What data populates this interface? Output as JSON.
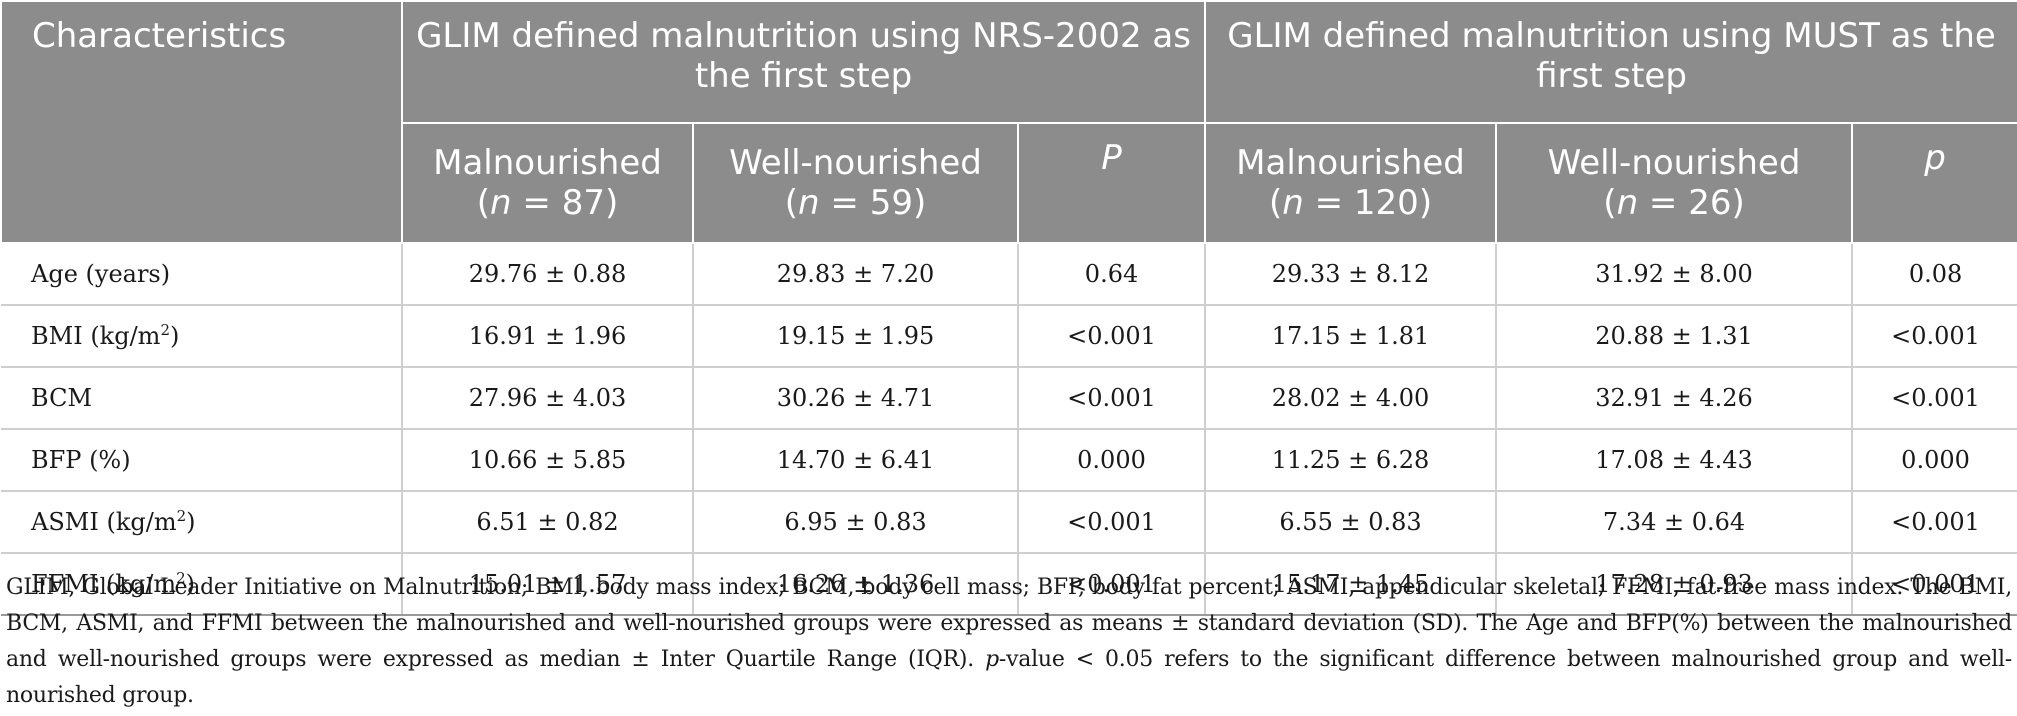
{
  "header": {
    "characteristics": "Characteristics",
    "group_nrs": "GLIM defined malnutrition using NRS-2002 as the first step",
    "group_must": "GLIM defined malnutrition using MUST as the first step",
    "nrs": {
      "malnourished": "Malnourished",
      "malnourished_n": "87",
      "well": "Well-nourished",
      "well_n": "59",
      "p": "P"
    },
    "must": {
      "malnourished": "Malnourished",
      "malnourished_n": "120",
      "well": "Well-nourished",
      "well_n": "26",
      "p": "p"
    },
    "n_label": "n",
    "n_eq": " = "
  },
  "rows": [
    {
      "label": "Age (years)",
      "unit_sup": "",
      "unit_close": "",
      "nrs_mal": "29.76 ± 0.88",
      "nrs_well": "29.83 ± 7.20",
      "nrs_p": "0.64",
      "must_mal": "29.33 ± 8.12",
      "must_well": "31.92 ± 8.00",
      "must_p": "0.08"
    },
    {
      "label": "BMI (kg/m",
      "unit_sup": "2",
      "unit_close": ")",
      "nrs_mal": "16.91 ± 1.96",
      "nrs_well": "19.15 ± 1.95",
      "nrs_p": "<0.001",
      "must_mal": "17.15 ± 1.81",
      "must_well": "20.88 ± 1.31",
      "must_p": "<0.001"
    },
    {
      "label": "BCM",
      "unit_sup": "",
      "unit_close": "",
      "nrs_mal": "27.96 ± 4.03",
      "nrs_well": "30.26 ± 4.71",
      "nrs_p": "<0.001",
      "must_mal": "28.02 ± 4.00",
      "must_well": "32.91 ± 4.26",
      "must_p": "<0.001"
    },
    {
      "label": "BFP (%)",
      "unit_sup": "",
      "unit_close": "",
      "nrs_mal": "10.66 ± 5.85",
      "nrs_well": "14.70 ± 6.41",
      "nrs_p": "0.000",
      "must_mal": "11.25 ± 6.28",
      "must_well": "17.08 ± 4.43",
      "must_p": "0.000"
    },
    {
      "label": "ASMI (kg/m",
      "unit_sup": "2",
      "unit_close": ")",
      "nrs_mal": "6.51 ± 0.82",
      "nrs_well": "6.95 ± 0.83",
      "nrs_p": "<0.001",
      "must_mal": "6.55 ± 0.83",
      "must_well": "7.34 ± 0.64",
      "must_p": "<0.001"
    },
    {
      "label": "FFMI (kg/m",
      "unit_sup": "2",
      "unit_close": ")",
      "nrs_mal": "15.01 ± 1.57",
      "nrs_well": "16.26 ± 1.36",
      "nrs_p": "<0.001",
      "must_mal": "15.17 ± 1.45",
      "must_well": "17.28 ± 0.93",
      "must_p": "<0.001"
    }
  ],
  "footnote": {
    "main": "GLIM, Global Leader Initiative on Malnutrition; BMI, body mass index; BCM, body cell mass; BFP, body fat percent; ASMI, appendicular skeletal; FFMI, fat-free mass index. The BMI, BCM, ASMI, and FFMI between the malnourished and well-nourished groups were expressed as means ± standard deviation (SD). The Age and BFP(%) between the malnourished and well-nourished groups were expressed as median ± Inter Quartile Range (IQR). ",
    "p_italic": "p",
    "tail": "-value < 0.05 refers to the significant difference between malnourished group and well-nourished group."
  }
}
